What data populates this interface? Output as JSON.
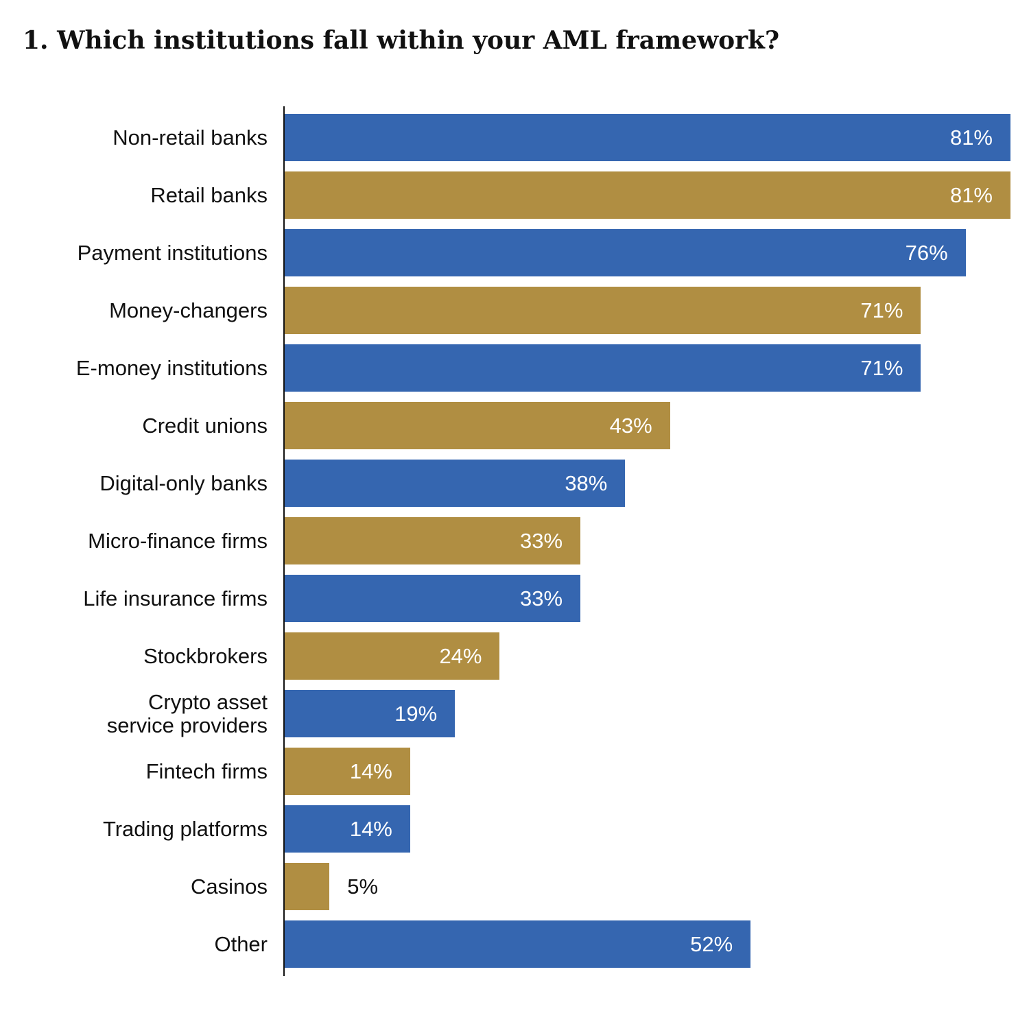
{
  "chart_data": {
    "type": "bar",
    "orientation": "horizontal",
    "title": "1. Which institutions fall within your AML framework?",
    "categories": [
      "Non-retail banks",
      "Retail banks",
      "Payment institutions",
      "Money-changers",
      "E-money institutions",
      "Credit unions",
      "Digital-only banks",
      "Micro-finance firms",
      "Life insurance firms",
      "Stockbrokers",
      "Crypto asset\nservice providers",
      "Fintech firms",
      "Trading platforms",
      "Casinos",
      "Other"
    ],
    "values": [
      81,
      81,
      76,
      71,
      71,
      43,
      38,
      33,
      33,
      24,
      19,
      14,
      14,
      5,
      52
    ],
    "value_labels": [
      "81%",
      "81%",
      "76%",
      "71%",
      "71%",
      "43%",
      "38%",
      "33%",
      "33%",
      "24%",
      "19%",
      "14%",
      "14%",
      "5%",
      "52%"
    ],
    "colors": [
      "#3566b0",
      "#b08e42"
    ]
  }
}
